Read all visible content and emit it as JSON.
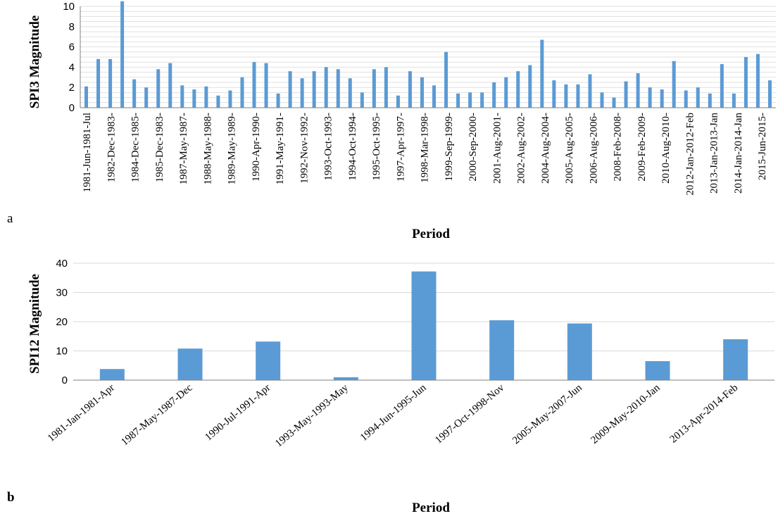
{
  "chart_data": [
    {
      "type": "bar",
      "panel_label": "a",
      "xlabel": "Period",
      "ylabel": "SPI3 Magnitude",
      "ylim": [
        0,
        10
      ],
      "yticks": [
        0,
        2,
        4,
        6,
        8,
        10
      ],
      "grid": true,
      "color": "#5b9bd5",
      "tick_labels": [
        "1981-Jun-1981-Jul",
        "1982-Dec-1983-",
        "1984-Dec-1985-",
        "1985-Dec-1983-",
        "1987-May-1987-",
        "1988-May-1988-",
        "1989-May-1989-",
        "1990-Apr-1990-",
        "1991-May-1991-",
        "1992-Nov-1992-",
        "1993-Oct-1993-",
        "1994-Oct-1994-",
        "1995-Oct-1995-",
        "1997-Apr-1997-",
        "1998-Mar-1998-",
        "1999-Sep-1999-",
        "2000-Sep-2000-",
        "2001-Aug-2001-",
        "2002-Aug-2002-",
        "2004-Aug-2004-",
        "2005-Aug-2005-",
        "2006-Aug-2006-",
        "2008-Feb-2008-",
        "2009-Feb-2009-",
        "2010-Aug-2010-",
        "2012-Jan-2012-Feb",
        "2013-Jan-2013-Jan",
        "2014-Jan-2014-Jan",
        "2015-Jun-2015-"
      ],
      "values": [
        2.1,
        4.8,
        4.8,
        10.5,
        2.8,
        2.0,
        3.8,
        4.4,
        2.2,
        1.8,
        2.1,
        1.2,
        1.7,
        3.0,
        4.5,
        4.4,
        1.4,
        3.6,
        2.9,
        3.6,
        4.0,
        3.8,
        2.9,
        1.5,
        3.8,
        4.0,
        1.2,
        3.6,
        3.0,
        2.2,
        5.5,
        1.4,
        1.5,
        1.5,
        2.5,
        3.0,
        3.6,
        4.2,
        6.7,
        2.7,
        2.3,
        2.3,
        3.3,
        1.5,
        1.0,
        2.6,
        3.4,
        2.0,
        1.8,
        4.6,
        1.7,
        2.0,
        1.4,
        4.3,
        1.4,
        5.0,
        5.3,
        2.7
      ]
    },
    {
      "type": "bar",
      "panel_label": "b",
      "xlabel": "Period",
      "ylabel": "SPI12 Magnitude",
      "ylim": [
        0,
        40
      ],
      "yticks": [
        0,
        10,
        20,
        30,
        40
      ],
      "grid": true,
      "color": "#5b9bd5",
      "categories": [
        "1981-Jan-1981-Apr",
        "1987-May-1987-Dec",
        "1990-Jul-1991-Apr",
        "1993-May-1993-May",
        "1994-Jun-1995-Jun",
        "1997-Oct-1998-Nov",
        "2005-May-2007-Jun",
        "2009-May-2010-Jan",
        "2013-Apr-2014-Feb"
      ],
      "values": [
        3.8,
        10.8,
        13.2,
        1.0,
        37.2,
        20.5,
        19.4,
        6.5,
        14.0
      ]
    }
  ]
}
